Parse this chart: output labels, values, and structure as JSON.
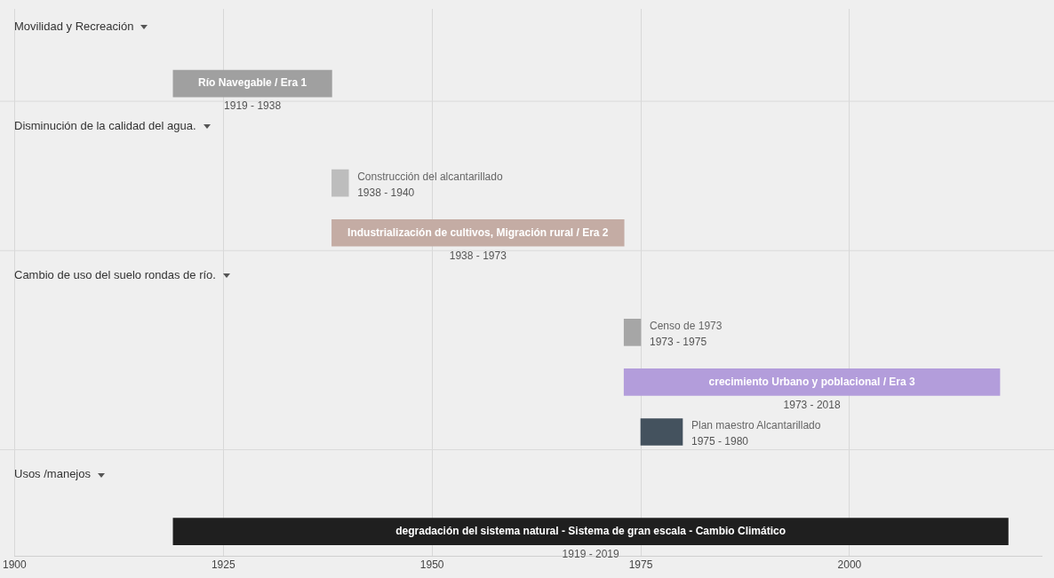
{
  "chart_data": {
    "type": "bar",
    "orientation": "horizontal",
    "categories": [
      "Movilidad y Recreación",
      "Río Navegable / Era 1",
      "Disminución de la calidad del agua.",
      "Construcción del alcantarillado",
      "Industrialización de cultivos, Migración rural / Era 2",
      "Cambio de uso del suelo rondas de río.",
      "Censo de 1973",
      "crecimiento Urbano y poblacional / Era 3",
      "Plan maestro Alcantarillado",
      "Usos /manejos",
      "degradación del sistema natural - Sistema de gran escala - Cambio Climático"
    ],
    "base": [
      null,
      1919,
      null,
      1938,
      1938,
      null,
      1973,
      1973,
      1975,
      null,
      1919
    ],
    "values": [
      null,
      19,
      null,
      2,
      35,
      null,
      2,
      45,
      5,
      null,
      100
    ],
    "colors": [
      null,
      "#a0a0a0",
      null,
      "#bdbdbd",
      "#c4aca4",
      null,
      "#a6a6a6",
      "#b39ddb",
      "#44525e",
      null,
      "#1f1f1f"
    ],
    "annotations": [
      {
        "text": "1919 - 1938",
        "x": 1928.5,
        "y": "Río Navegable / Era 1"
      },
      {
        "text": "1938 - 1940",
        "x": 1940,
        "y": "Construcción del alcantarillado"
      },
      {
        "text": "1938 - 1973",
        "x": 1955.5,
        "y": "Industrialización de cultivos, Migración rural / Era 2"
      },
      {
        "text": "1973 - 1975",
        "x": 1975,
        "y": "Censo de 1973"
      },
      {
        "text": "1973 - 2018",
        "x": 1995.5,
        "y": "crecimiento Urbano y poblacional / Era 3"
      },
      {
        "text": "1975 - 1980",
        "x": 1980,
        "y": "Plan maestro Alcantarillado"
      },
      {
        "text": "1919 - 2019",
        "x": 1969,
        "y": "degradación del sistema natural - Sistema de gran escala - Cambio Climático"
      }
    ],
    "xlim": [
      1900,
      2023
    ],
    "xticks": [
      1900,
      1925,
      1950,
      1975,
      2000
    ],
    "grid": "x",
    "legend": false
  }
}
